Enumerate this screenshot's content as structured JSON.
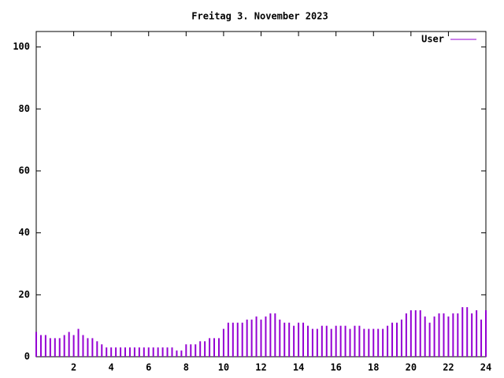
{
  "chart_data": {
    "type": "impulse",
    "title": "Freitag 3. November 2023",
    "xlim": [
      0,
      24
    ],
    "xticks": [
      2,
      4,
      6,
      8,
      10,
      12,
      14,
      16,
      18,
      20,
      22,
      24
    ],
    "ylim": [
      0,
      105
    ],
    "yticks": [
      0,
      20,
      40,
      60,
      80,
      100
    ],
    "legend": "top right",
    "grid": false,
    "x": [
      0,
      0.25,
      0.5,
      0.75,
      1,
      1.25,
      1.5,
      1.75,
      2,
      2.25,
      2.5,
      2.75,
      3,
      3.25,
      3.5,
      3.75,
      4,
      4.25,
      4.5,
      4.75,
      5,
      5.25,
      5.5,
      5.75,
      6,
      6.25,
      6.5,
      6.75,
      7,
      7.25,
      7.5,
      7.75,
      8,
      8.25,
      8.5,
      8.75,
      9,
      9.25,
      9.5,
      9.75,
      10,
      10.25,
      10.5,
      10.75,
      11,
      11.25,
      11.5,
      11.75,
      12,
      12.25,
      12.5,
      12.75,
      13,
      13.25,
      13.5,
      13.75,
      14,
      14.25,
      14.5,
      14.75,
      15,
      15.25,
      15.5,
      15.75,
      16,
      16.25,
      16.5,
      16.75,
      17,
      17.25,
      17.5,
      17.75,
      18,
      18.25,
      18.5,
      18.75,
      19,
      19.25,
      19.5,
      19.75,
      20,
      20.25,
      20.5,
      20.75,
      21,
      21.25,
      21.5,
      21.75,
      22,
      22.25,
      22.5,
      22.75,
      23,
      23.25,
      23.5,
      23.75,
      24
    ],
    "series": [
      {
        "name": "User",
        "color": "#9400d3",
        "values": [
          8,
          7,
          7,
          6,
          6,
          6,
          7,
          8,
          7,
          9,
          7,
          6,
          6,
          5,
          4,
          3,
          3,
          3,
          3,
          3,
          3,
          3,
          3,
          3,
          3,
          3,
          3,
          3,
          3,
          3,
          2,
          2,
          4,
          4,
          4,
          5,
          5,
          6,
          6,
          6,
          9,
          11,
          11,
          11,
          11,
          12,
          12,
          13,
          12,
          13,
          14,
          14,
          12,
          11,
          11,
          10,
          11,
          11,
          10,
          9,
          9,
          10,
          10,
          9,
          10,
          10,
          10,
          9,
          10,
          10,
          9,
          9,
          9,
          9,
          9,
          10,
          11,
          11,
          12,
          14,
          15,
          15,
          15,
          13,
          11,
          13,
          14,
          14,
          13,
          14,
          14,
          16,
          16,
          14,
          15,
          12,
          15
        ]
      }
    ]
  }
}
